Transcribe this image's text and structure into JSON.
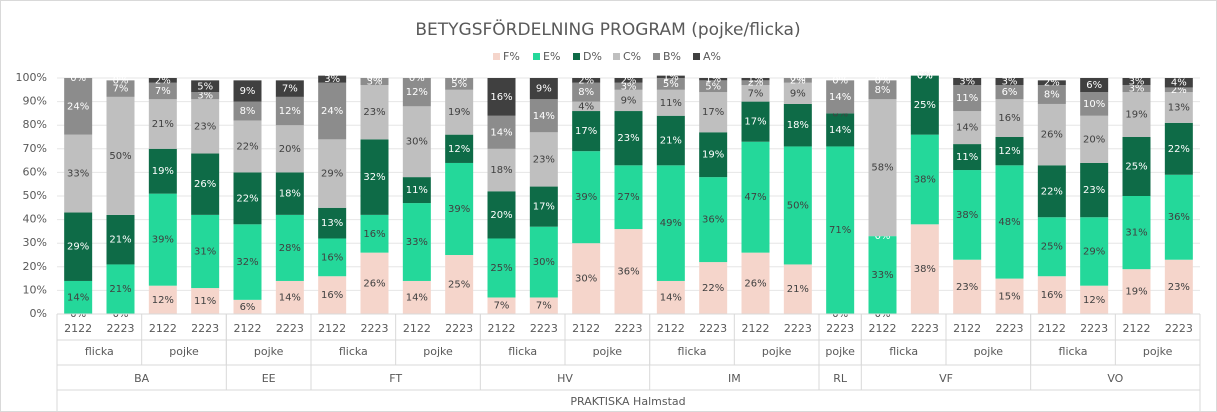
{
  "chart_data": {
    "type": "stacked_bar",
    "title": "BETYGSFÖRDELNING PROGRAM (pojke/flicka)",
    "x_group_label": "PRAKTISKA Halmstad",
    "categories": [
      [
        "BA",
        "flicka",
        "2122"
      ],
      [
        "BA",
        "flicka",
        "2223"
      ],
      [
        "BA",
        "pojke",
        "2122"
      ],
      [
        "BA",
        "pojke",
        "2223"
      ],
      [
        "EE",
        "pojke",
        "2122"
      ],
      [
        "EE",
        "pojke",
        "2223"
      ],
      [
        "FT",
        "flicka",
        "2122"
      ],
      [
        "FT",
        "flicka",
        "2223"
      ],
      [
        "FT",
        "pojke",
        "2122"
      ],
      [
        "FT",
        "pojke",
        "2223"
      ],
      [
        "HV",
        "flicka",
        "2122"
      ],
      [
        "HV",
        "flicka",
        "2223"
      ],
      [
        "HV",
        "pojke",
        "2122"
      ],
      [
        "HV",
        "pojke",
        "2223"
      ],
      [
        "IM",
        "flicka",
        "2122"
      ],
      [
        "IM",
        "flicka",
        "2223"
      ],
      [
        "IM",
        "pojke",
        "2122"
      ],
      [
        "IM",
        "pojke",
        "2223"
      ],
      [
        "RL",
        "pojke",
        "2223"
      ],
      [
        "VF",
        "flicka",
        "2122"
      ],
      [
        "VF",
        "flicka",
        "2223"
      ],
      [
        "VF",
        "pojke",
        "2122"
      ],
      [
        "VF",
        "pojke",
        "2223"
      ],
      [
        "VO",
        "flicka",
        "2122"
      ],
      [
        "VO",
        "flicka",
        "2223"
      ],
      [
        "VO",
        "pojke",
        "2122"
      ],
      [
        "VO",
        "pojke",
        "2223"
      ]
    ],
    "ylim": [
      0,
      100
    ],
    "yticks": [
      {
        "value": 0,
        "label": "0%"
      },
      {
        "value": 10,
        "label": "10%"
      },
      {
        "value": 20,
        "label": "20%"
      },
      {
        "value": 30,
        "label": "30%"
      },
      {
        "value": 40,
        "label": "40%"
      },
      {
        "value": 50,
        "label": "50%"
      },
      {
        "value": 60,
        "label": "60%"
      },
      {
        "value": 70,
        "label": "70%"
      },
      {
        "value": 80,
        "label": "80%"
      },
      {
        "value": 90,
        "label": "90%"
      },
      {
        "value": 100,
        "label": "100%"
      }
    ],
    "legend": "top",
    "series": [
      {
        "name": "F%",
        "color": "#f5d5cb",
        "values": [
          0,
          0,
          12,
          11,
          6,
          14,
          16,
          26,
          14,
          25,
          7,
          7,
          30,
          36,
          14,
          22,
          26,
          21,
          0,
          0,
          38,
          23,
          15,
          16,
          12,
          19,
          23
        ],
        "value_labels": [
          "0%",
          "0%",
          "12%",
          "11%",
          "6%",
          "14%",
          "16%",
          "26%",
          "14%",
          "25%",
          "7%",
          "7%",
          "30%",
          "36%",
          "14%",
          "22%",
          "26%",
          "21%",
          "0%",
          "0%",
          "38%",
          "23%",
          "15%",
          "16%",
          "12%",
          "19%",
          "23%"
        ]
      },
      {
        "name": "E%",
        "color": "#24d89a",
        "values": [
          14,
          21,
          39,
          31,
          32,
          28,
          16,
          16,
          33,
          39,
          25,
          30,
          39,
          27,
          49,
          36,
          47,
          50,
          71,
          33,
          38,
          38,
          48,
          25,
          29,
          31,
          36
        ],
        "value_labels": [
          "14%",
          "21%",
          "39%",
          "31%",
          "32%",
          "28%",
          "16%",
          "16%",
          "33%",
          "39%",
          "25%",
          "30%",
          "39%",
          "27%",
          "49%",
          "36%",
          "47%",
          "50%",
          "71%",
          "33%",
          "38%",
          "38%",
          "48%",
          "25%",
          "29%",
          "31%",
          "36%"
        ]
      },
      {
        "name": "D%",
        "color": "#0e6b47",
        "values": [
          29,
          21,
          19,
          26,
          22,
          18,
          13,
          32,
          11,
          12,
          20,
          17,
          17,
          23,
          21,
          19,
          17,
          18,
          14,
          0,
          25,
          11,
          12,
          22,
          23,
          25,
          22
        ],
        "value_labels": [
          "29%",
          "21%",
          "19%",
          "26%",
          "22%",
          "18%",
          "13%",
          "32%",
          "11%",
          "12%",
          "20%",
          "17%",
          "17%",
          "23%",
          "21%",
          "19%",
          "17%",
          "18%",
          "14%",
          "0%",
          "25%",
          "11%",
          "12%",
          "22%",
          "23%",
          "25%",
          "22%"
        ]
      },
      {
        "name": "C%",
        "color": "#bfbfbf",
        "values": [
          33,
          50,
          21,
          23,
          22,
          20,
          29,
          23,
          30,
          19,
          18,
          23,
          4,
          9,
          11,
          17,
          7,
          9,
          0,
          58,
          0,
          14,
          16,
          26,
          20,
          19,
          13
        ],
        "value_labels": [
          "33%",
          "50%",
          "21%",
          "23%",
          "22%",
          "20%",
          "29%",
          "23%",
          "30%",
          "19%",
          "18%",
          "23%",
          "4%",
          "9%",
          "11%",
          "17%",
          "7%",
          "9%",
          "0%",
          "58%",
          "0%",
          "14%",
          "16%",
          "26%",
          "20%",
          "19%",
          "13%"
        ]
      },
      {
        "name": "B%",
        "color": "#8c8c8c",
        "values": [
          24,
          7,
          7,
          3,
          8,
          12,
          24,
          3,
          12,
          5,
          14,
          14,
          8,
          3,
          5,
          5,
          2,
          2,
          14,
          8,
          0,
          11,
          6,
          8,
          10,
          3,
          2
        ],
        "value_labels": [
          "24%",
          "7%",
          "7%",
          "3%",
          "8%",
          "12%",
          "24%",
          "3%",
          "12%",
          "5%",
          "14%",
          "14%",
          "8%",
          "3%",
          "5%",
          "5%",
          "2%",
          "2%",
          "14%",
          "8%",
          "0%",
          "11%",
          "6%",
          "8%",
          "10%",
          "3%",
          "2%"
        ]
      },
      {
        "name": "A%",
        "color": "#404040",
        "values": [
          0,
          0,
          2,
          5,
          9,
          7,
          3,
          0,
          0,
          0,
          16,
          9,
          2,
          2,
          1,
          1,
          1,
          0,
          0,
          0,
          0,
          3,
          3,
          2,
          6,
          3,
          4
        ],
        "value_labels": [
          "0%",
          "0%",
          "2%",
          "5%",
          "9%",
          "7%",
          "3%",
          "0%",
          "0%",
          "0%",
          "16%",
          "9%",
          "2%",
          "2%",
          "1%",
          "1%",
          "1%",
          "0%",
          "0%",
          "0%",
          "0%",
          "3%",
          "3%",
          "2%",
          "6%",
          "3%",
          "4%"
        ]
      }
    ]
  }
}
